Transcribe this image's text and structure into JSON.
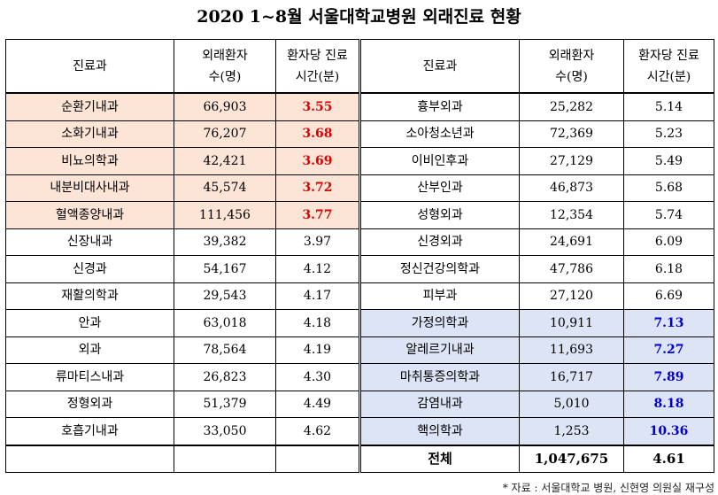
{
  "title": "2020 1~8월 서울대학교병원 외래진료 현황",
  "headers": {
    "dept": "진료과",
    "patients_l1": "외래환자",
    "patients_l2": "수(명)",
    "time_l1": "환자당 진료",
    "time_l2": "시간(분)"
  },
  "rows": [
    {
      "left": {
        "dept": "순환기내과",
        "patients": "66,903",
        "time": "3.55"
      },
      "right": {
        "dept": "흉부외과",
        "patients": "25,282",
        "time": "5.14"
      }
    },
    {
      "left": {
        "dept": "소화기내과",
        "patients": "76,207",
        "time": "3.68"
      },
      "right": {
        "dept": "소아청소년과",
        "patients": "72,369",
        "time": "5.23"
      }
    },
    {
      "left": {
        "dept": "비뇨의학과",
        "patients": "42,421",
        "time": "3.69"
      },
      "right": {
        "dept": "이비인후과",
        "patients": "27,129",
        "time": "5.49"
      }
    },
    {
      "left": {
        "dept": "내분비대사내과",
        "patients": "45,574",
        "time": "3.72"
      },
      "right": {
        "dept": "산부인과",
        "patients": "46,873",
        "time": "5.68"
      }
    },
    {
      "left": {
        "dept": "혈액종양내과",
        "patients": "111,456",
        "time": "3.77"
      },
      "right": {
        "dept": "성형외과",
        "patients": "12,354",
        "time": "5.74"
      }
    },
    {
      "left": {
        "dept": "신장내과",
        "patients": "39,382",
        "time": "3.97"
      },
      "right": {
        "dept": "신경외과",
        "patients": "24,691",
        "time": "6.09"
      }
    },
    {
      "left": {
        "dept": "신경과",
        "patients": "54,167",
        "time": "4.12"
      },
      "right": {
        "dept": "정신건강의학과",
        "patients": "47,786",
        "time": "6.18"
      }
    },
    {
      "left": {
        "dept": "재활의학과",
        "patients": "29,543",
        "time": "4.17"
      },
      "right": {
        "dept": "피부과",
        "patients": "27,120",
        "time": "6.69"
      }
    },
    {
      "left": {
        "dept": "안과",
        "patients": "63,018",
        "time": "4.18"
      },
      "right": {
        "dept": "가정의학과",
        "patients": "10,911",
        "time": "7.13"
      }
    },
    {
      "left": {
        "dept": "외과",
        "patients": "78,564",
        "time": "4.19"
      },
      "right": {
        "dept": "알레르기내과",
        "patients": "11,693",
        "time": "7.27"
      }
    },
    {
      "left": {
        "dept": "류마티스내과",
        "patients": "26,823",
        "time": "4.30"
      },
      "right": {
        "dept": "마취통증의학과",
        "patients": "16,717",
        "time": "7.89"
      }
    },
    {
      "left": {
        "dept": "정형외과",
        "patients": "51,379",
        "time": "4.49"
      },
      "right": {
        "dept": "감염내과",
        "patients": "5,010",
        "time": "8.18"
      }
    },
    {
      "left": {
        "dept": "호흡기내과",
        "patients": "33,050",
        "time": "4.62"
      },
      "right": {
        "dept": "핵의학과",
        "patients": "1,253",
        "time": "10.36"
      }
    }
  ],
  "total": {
    "label": "전체",
    "patients": "1,047,675",
    "time": "4.61"
  },
  "source_note": "* 자료 : 서울대학교 병원, 신현영 의원실 재구성",
  "colors": {
    "highlight_low": "#fce4d6",
    "highlight_high": "#dde4f5",
    "low_text": "#e00000",
    "high_text": "#0000cc"
  }
}
